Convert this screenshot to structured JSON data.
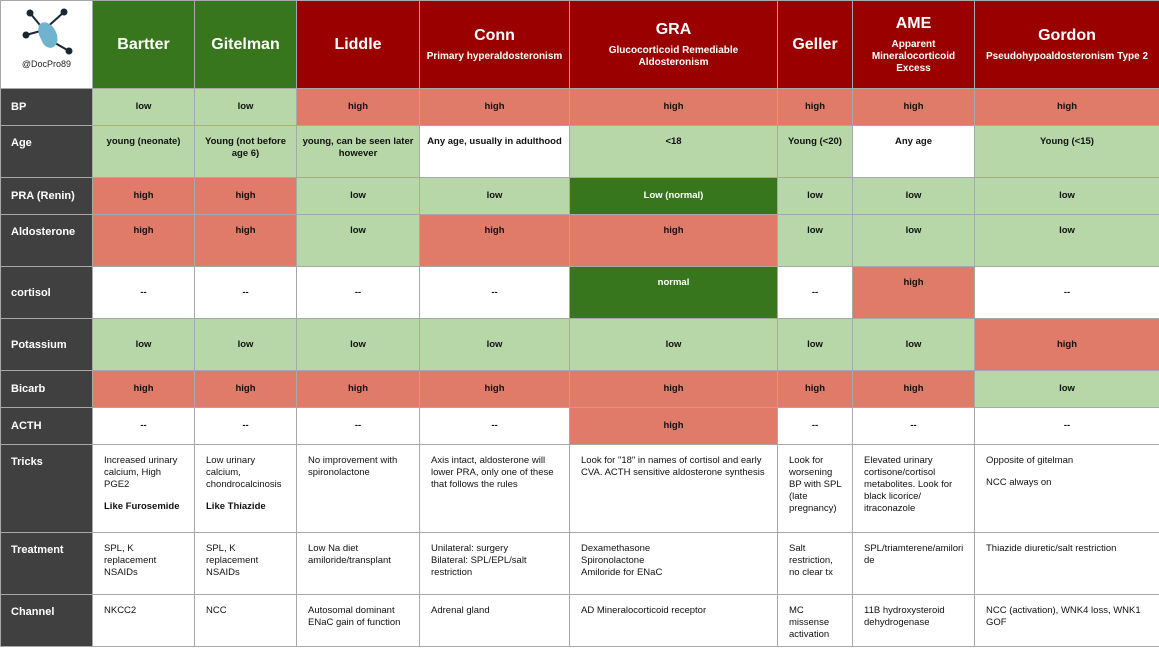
{
  "brand": {
    "handle": "@DocPro89",
    "logo_icon": "network-logo-icon"
  },
  "colors": {
    "header_green": "#38761d",
    "header_red": "#9a0000",
    "row_label_bg": "#404040",
    "light_green": "#b7d7a8",
    "dark_green": "#38761d",
    "salmon": "#e07b6a"
  },
  "headers": [
    {
      "title": "Bartter",
      "subtitle": ""
    },
    {
      "title": "Gitelman",
      "subtitle": ""
    },
    {
      "title": "Liddle",
      "subtitle": ""
    },
    {
      "title": "Conn",
      "subtitle": "Primary hyperaldosteronism"
    },
    {
      "title": "GRA",
      "subtitle": "Glucocorticoid Remediable Aldosteronism"
    },
    {
      "title": "Geller",
      "subtitle": ""
    },
    {
      "title": "AME",
      "subtitle": "Apparent Mineralocorticoid Excess"
    },
    {
      "title": "Gordon",
      "subtitle": "Pseudohypoaldosteronism Type 2"
    }
  ],
  "rows": [
    {
      "label": "BP",
      "cells": [
        "low",
        "low",
        "high",
        "high",
        "high",
        "high",
        "high",
        "high"
      ]
    },
    {
      "label": "Age",
      "cells": [
        "young (neonate)",
        "Young (not before age 6)",
        "young, can be seen later however",
        "Any age, usually in adulthood",
        "<18",
        "Young (<20)",
        "Any age",
        "Young (<15)"
      ]
    },
    {
      "label": "PRA (Renin)",
      "cells": [
        "high",
        "high",
        "low",
        "low",
        "Low (normal)",
        "low",
        "low",
        "low"
      ]
    },
    {
      "label": "Aldosterone",
      "cells": [
        "high",
        "high",
        "low",
        "high",
        "high",
        "low",
        "low",
        "low"
      ]
    },
    {
      "label": "cortisol",
      "cells": [
        "--",
        "--",
        "--",
        "--",
        "normal",
        "--",
        "high",
        "--"
      ]
    },
    {
      "label": "Potassium",
      "cells": [
        "low",
        "low",
        "low",
        "low",
        "low",
        "low",
        "low",
        "high"
      ]
    },
    {
      "label": "Bicarb",
      "cells": [
        "high",
        "high",
        "high",
        "high",
        "high",
        "high",
        "high",
        "low"
      ]
    },
    {
      "label": "ACTH",
      "cells": [
        "--",
        "--",
        "--",
        "--",
        "high",
        "--",
        "--",
        "--"
      ]
    },
    {
      "label": "Tricks",
      "cells": [
        "Increased urinary calcium, High PGE2",
        "Low urinary calcium, chondrocalcinosis",
        "No improvement with spironolactone",
        "Axis intact, aldosterone will lower PRA, only one of these that follows the rules",
        "Look for \"18\" in names of cortisol and early CVA. ACTH sensitive aldosterone synthesis",
        "Look for worsening BP with SPL (late pregnancy)",
        "Elevated urinary cortisone/cortisol metabolites. Look for black licorice/ itraconazole",
        "Opposite of gitelman"
      ],
      "extras": {
        "bartter": "Like Furosemide",
        "gitelman": "Like Thiazide",
        "gordon": "NCC always on"
      }
    },
    {
      "label": "Treatment",
      "cells": [
        [
          "SPL, K replacement",
          "NSAIDs"
        ],
        [
          "SPL, K replacement",
          "NSAIDs"
        ],
        [
          "Low Na diet",
          "amiloride/transplant"
        ],
        [
          "Unilateral: surgery",
          "Bilateral: SPL/EPL/salt restriction"
        ],
        [
          "Dexamethasone",
          "Spironolactone",
          "Amiloride for ENaC"
        ],
        [
          "Salt restriction, no clear tx"
        ],
        [
          "SPL/triamterene/amiloride"
        ],
        [
          "Thiazide diuretic/salt restriction"
        ]
      ]
    },
    {
      "label": "Channel",
      "cells": [
        [
          "NKCC2"
        ],
        [
          "NCC"
        ],
        [
          "Autosomal dominant",
          "ENaC gain of function"
        ],
        [
          "Adrenal gland"
        ],
        [
          "AD Mineralocorticoid receptor"
        ],
        [
          "MC missense activation"
        ],
        [
          "11B hydroxysteroid dehydrogenase"
        ],
        [
          "NCC (activation), WNK4 loss, WNK1 GOF"
        ]
      ]
    }
  ]
}
